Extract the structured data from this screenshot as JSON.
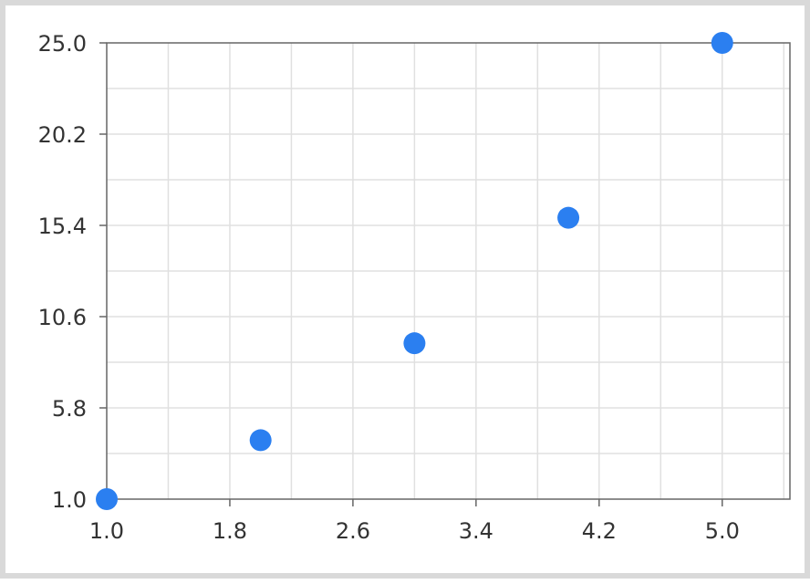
{
  "chart_data": {
    "type": "scatter",
    "title": "",
    "xlabel": "",
    "ylabel": "",
    "x": [
      1.0,
      2.0,
      3.0,
      4.0,
      5.0
    ],
    "y": [
      1.0,
      4.1,
      9.2,
      15.8,
      25.0
    ],
    "xlim": [
      1.0,
      5.44
    ],
    "ylim": [
      1.0,
      25.0
    ],
    "x_ticks": [
      "1.0",
      "1.8",
      "2.6",
      "3.4",
      "4.2",
      "5.0"
    ],
    "y_ticks": [
      "1.0",
      "5.8",
      "10.6",
      "15.4",
      "20.2",
      "25.0"
    ],
    "grid": true,
    "legend": "none",
    "point_color": "#2b7ff0",
    "grid_color": "#e0e0e0",
    "axis_color": "#666666"
  }
}
